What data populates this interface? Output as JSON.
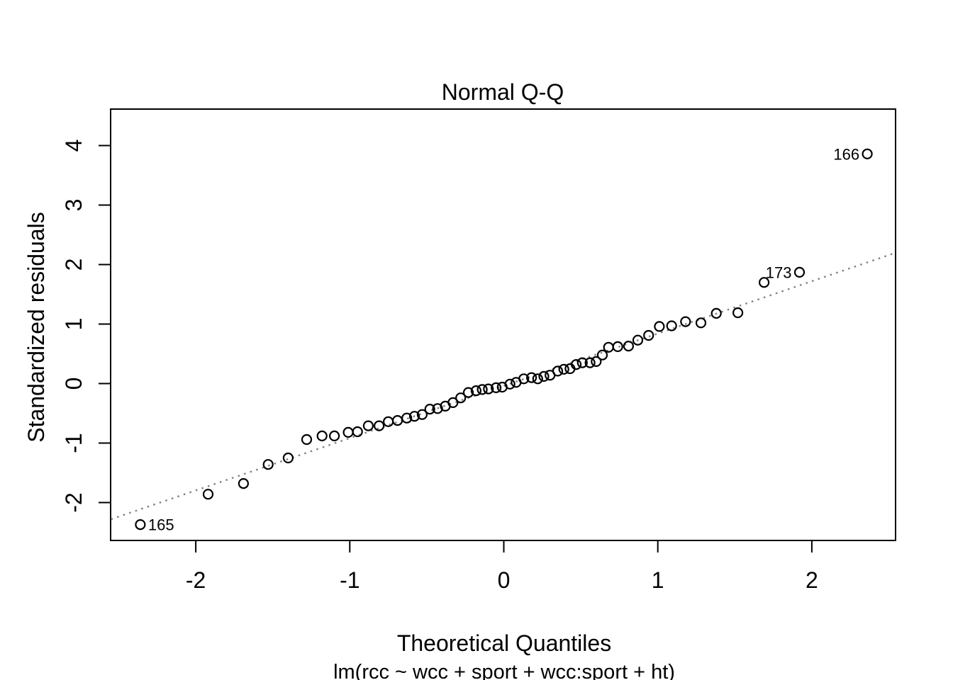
{
  "figure": {
    "background_color": "#ffffff",
    "foreground_color": "#000000",
    "reference_line_color": "#808080"
  },
  "chart_data": {
    "type": "scatter",
    "title": "Normal Q-Q",
    "xlabel": "Theoretical Quantiles",
    "model_caption": "lm(rcc ~ wcc + sport + wcc:sport + ht)",
    "ylabel": "Standardized residuals",
    "x_ticks": [
      -2,
      -1,
      0,
      1,
      2
    ],
    "x_tick_labels": [
      "-2",
      "-1",
      "0",
      "1",
      "2"
    ],
    "y_ticks": [
      -2,
      -1,
      0,
      1,
      2,
      3,
      4
    ],
    "y_tick_labels": [
      "-2",
      "-1",
      "0",
      "1",
      "2",
      "3",
      "4"
    ],
    "xlim": [
      -2.55,
      2.55
    ],
    "ylim": [
      -2.64,
      4.61
    ],
    "grid": false,
    "legend": null,
    "marker": {
      "shape": "open-circle",
      "color": "#000000"
    },
    "reference_line": {
      "type": "qqline",
      "slope": 0.879,
      "intercept": -0.038,
      "style": "dotted",
      "color": "#808080"
    },
    "points": [
      [
        -2.36,
        -2.37
      ],
      [
        -1.92,
        -1.86
      ],
      [
        -1.69,
        -1.68
      ],
      [
        -1.53,
        -1.36
      ],
      [
        -1.4,
        -1.25
      ],
      [
        -1.28,
        -0.94
      ],
      [
        -1.18,
        -0.88
      ],
      [
        -1.1,
        -0.88
      ],
      [
        -1.01,
        -0.82
      ],
      [
        -0.95,
        -0.81
      ],
      [
        -0.88,
        -0.71
      ],
      [
        -0.81,
        -0.71
      ],
      [
        -0.75,
        -0.64
      ],
      [
        -0.69,
        -0.62
      ],
      [
        -0.63,
        -0.58
      ],
      [
        -0.58,
        -0.55
      ],
      [
        -0.53,
        -0.52
      ],
      [
        -0.48,
        -0.43
      ],
      [
        -0.43,
        -0.42
      ],
      [
        -0.38,
        -0.38
      ],
      [
        -0.33,
        -0.32
      ],
      [
        -0.28,
        -0.24
      ],
      [
        -0.23,
        -0.15
      ],
      [
        -0.18,
        -0.12
      ],
      [
        -0.14,
        -0.1
      ],
      [
        -0.1,
        -0.09
      ],
      [
        -0.05,
        -0.07
      ],
      [
        -0.01,
        -0.06
      ],
      [
        0.04,
        -0.01
      ],
      [
        0.08,
        0.02
      ],
      [
        0.13,
        0.08
      ],
      [
        0.18,
        0.1
      ],
      [
        0.22,
        0.08
      ],
      [
        0.26,
        0.12
      ],
      [
        0.3,
        0.14
      ],
      [
        0.35,
        0.21
      ],
      [
        0.39,
        0.24
      ],
      [
        0.43,
        0.25
      ],
      [
        0.47,
        0.32
      ],
      [
        0.51,
        0.35
      ],
      [
        0.56,
        0.35
      ],
      [
        0.6,
        0.37
      ],
      [
        0.64,
        0.48
      ],
      [
        0.68,
        0.61
      ],
      [
        0.74,
        0.62
      ],
      [
        0.81,
        0.63
      ],
      [
        0.87,
        0.73
      ],
      [
        0.94,
        0.81
      ],
      [
        1.01,
        0.96
      ],
      [
        1.09,
        0.97
      ],
      [
        1.18,
        1.04
      ],
      [
        1.28,
        1.02
      ],
      [
        1.38,
        1.18
      ],
      [
        1.52,
        1.19
      ],
      [
        1.69,
        1.7
      ],
      [
        1.92,
        1.87
      ],
      [
        2.36,
        3.86
      ]
    ],
    "labeled_points": [
      {
        "label": "165",
        "x": -2.36,
        "y": -2.37,
        "label_side": "right"
      },
      {
        "label": "173",
        "x": 1.92,
        "y": 1.87,
        "label_side": "left"
      },
      {
        "label": "166",
        "x": 2.36,
        "y": 3.86,
        "label_side": "left"
      }
    ]
  }
}
